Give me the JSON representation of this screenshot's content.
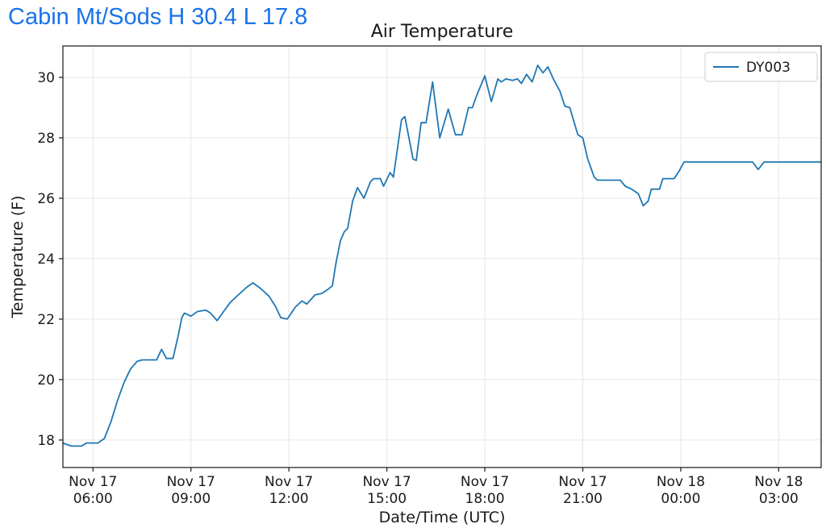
{
  "header": {
    "title": "Cabin Mt/Sods H 30.4 L 17.8",
    "title_color": "#1a73e8"
  },
  "chart_data": {
    "type": "line",
    "title": "Air Temperature",
    "xlabel": "Date/Time (UTC)",
    "ylabel": "Temperature (F)",
    "grid": true,
    "grid_color": "#e6e6e6",
    "spine_color": "#262626",
    "background": "#ffffff",
    "legend_position": "upper right",
    "legend": [
      {
        "label": "DY003",
        "color": "#1f77b4"
      }
    ],
    "high": 30.4,
    "low": 17.8,
    "ylim": [
      17.09,
      31.04
    ],
    "yticks": [
      18,
      20,
      22,
      24,
      26,
      28,
      30
    ],
    "xlim_hours": [
      5.08,
      28.3
    ],
    "xticks": [
      {
        "hour": 6,
        "line1": "Nov 17",
        "line2": "06:00"
      },
      {
        "hour": 9,
        "line1": "Nov 17",
        "line2": "09:00"
      },
      {
        "hour": 12,
        "line1": "Nov 17",
        "line2": "12:00"
      },
      {
        "hour": 15,
        "line1": "Nov 17",
        "line2": "15:00"
      },
      {
        "hour": 18,
        "line1": "Nov 17",
        "line2": "18:00"
      },
      {
        "hour": 21,
        "line1": "Nov 17",
        "line2": "21:00"
      },
      {
        "hour": 24,
        "line1": "Nov 18",
        "line2": "00:00"
      },
      {
        "hour": 27,
        "line1": "Nov 18",
        "line2": "03:00"
      }
    ],
    "series": [
      {
        "name": "DY003",
        "color": "#1f77b4",
        "points_hours_vs_degF": [
          [
            5.08,
            17.9
          ],
          [
            5.2,
            17.85
          ],
          [
            5.35,
            17.8
          ],
          [
            5.65,
            17.8
          ],
          [
            5.8,
            17.9
          ],
          [
            6.15,
            17.9
          ],
          [
            6.35,
            18.05
          ],
          [
            6.55,
            18.6
          ],
          [
            6.75,
            19.3
          ],
          [
            6.95,
            19.9
          ],
          [
            7.15,
            20.35
          ],
          [
            7.35,
            20.6
          ],
          [
            7.5,
            20.65
          ],
          [
            7.95,
            20.65
          ],
          [
            8.1,
            21.0
          ],
          [
            8.25,
            20.7
          ],
          [
            8.45,
            20.7
          ],
          [
            8.6,
            21.4
          ],
          [
            8.72,
            22.05
          ],
          [
            8.8,
            22.2
          ],
          [
            9.0,
            22.1
          ],
          [
            9.2,
            22.25
          ],
          [
            9.45,
            22.3
          ],
          [
            9.6,
            22.2
          ],
          [
            9.8,
            21.95
          ],
          [
            10.0,
            22.25
          ],
          [
            10.2,
            22.55
          ],
          [
            10.45,
            22.8
          ],
          [
            10.7,
            23.05
          ],
          [
            10.9,
            23.2
          ],
          [
            11.15,
            23.0
          ],
          [
            11.4,
            22.75
          ],
          [
            11.6,
            22.4
          ],
          [
            11.75,
            22.05
          ],
          [
            11.95,
            22.0
          ],
          [
            12.2,
            22.4
          ],
          [
            12.4,
            22.6
          ],
          [
            12.55,
            22.5
          ],
          [
            12.8,
            22.8
          ],
          [
            13.0,
            22.85
          ],
          [
            13.15,
            22.95
          ],
          [
            13.33,
            23.1
          ],
          [
            13.45,
            23.9
          ],
          [
            13.58,
            24.6
          ],
          [
            13.7,
            24.9
          ],
          [
            13.8,
            25.0
          ],
          [
            13.95,
            25.9
          ],
          [
            14.1,
            26.35
          ],
          [
            14.3,
            26.0
          ],
          [
            14.5,
            26.55
          ],
          [
            14.6,
            26.65
          ],
          [
            14.8,
            26.65
          ],
          [
            14.9,
            26.4
          ],
          [
            15.1,
            26.85
          ],
          [
            15.2,
            26.7
          ],
          [
            15.45,
            28.6
          ],
          [
            15.55,
            28.7
          ],
          [
            15.8,
            27.3
          ],
          [
            15.9,
            27.25
          ],
          [
            16.05,
            28.5
          ],
          [
            16.2,
            28.5
          ],
          [
            16.4,
            29.85
          ],
          [
            16.62,
            28.0
          ],
          [
            16.88,
            28.95
          ],
          [
            17.1,
            28.1
          ],
          [
            17.3,
            28.1
          ],
          [
            17.5,
            29.0
          ],
          [
            17.62,
            29.0
          ],
          [
            17.75,
            29.4
          ],
          [
            18.0,
            30.05
          ],
          [
            18.2,
            29.2
          ],
          [
            18.4,
            29.95
          ],
          [
            18.5,
            29.85
          ],
          [
            18.65,
            29.95
          ],
          [
            18.85,
            29.9
          ],
          [
            19.0,
            29.95
          ],
          [
            19.12,
            29.8
          ],
          [
            19.28,
            30.1
          ],
          [
            19.45,
            29.85
          ],
          [
            19.62,
            30.4
          ],
          [
            19.78,
            30.15
          ],
          [
            19.93,
            30.35
          ],
          [
            20.1,
            29.95
          ],
          [
            20.3,
            29.55
          ],
          [
            20.45,
            29.05
          ],
          [
            20.6,
            29.0
          ],
          [
            20.85,
            28.1
          ],
          [
            21.0,
            28.0
          ],
          [
            21.15,
            27.3
          ],
          [
            21.35,
            26.7
          ],
          [
            21.45,
            26.6
          ],
          [
            22.15,
            26.6
          ],
          [
            22.3,
            26.4
          ],
          [
            22.5,
            26.3
          ],
          [
            22.7,
            26.15
          ],
          [
            22.85,
            25.75
          ],
          [
            23.0,
            25.9
          ],
          [
            23.1,
            26.3
          ],
          [
            23.35,
            26.3
          ],
          [
            23.45,
            26.65
          ],
          [
            23.8,
            26.65
          ],
          [
            23.95,
            26.9
          ],
          [
            24.1,
            27.2
          ],
          [
            26.2,
            27.2
          ],
          [
            26.37,
            26.95
          ],
          [
            26.55,
            27.2
          ],
          [
            28.3,
            27.2
          ]
        ]
      }
    ]
  }
}
